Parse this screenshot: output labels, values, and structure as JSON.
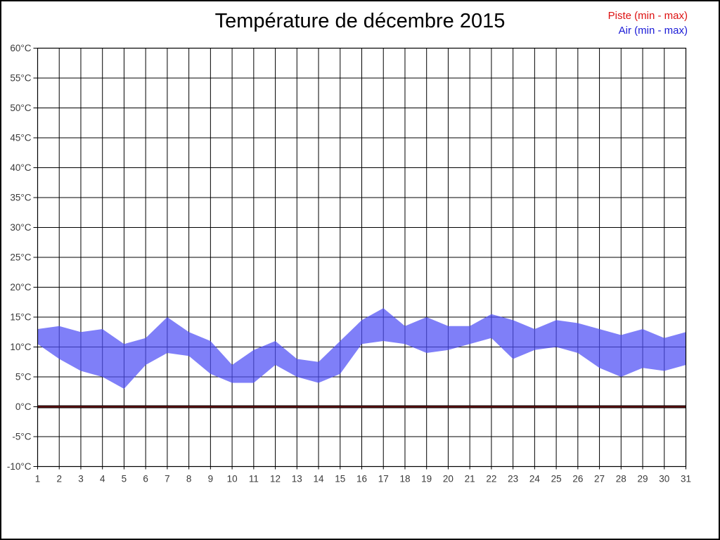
{
  "page": {
    "background": "#ffffff",
    "border_color": "#000000"
  },
  "legend": {
    "items": [
      {
        "id": "piste",
        "label": "Piste (min - max)",
        "color": "#dd1111"
      },
      {
        "id": "air",
        "label": "Air (min - max)",
        "color": "#1a1ad6"
      }
    ],
    "position": "top-right"
  },
  "chart_data": {
    "type": "area",
    "title": "Température de décembre 2015",
    "xlabel": "",
    "ylabel": "",
    "x": [
      1,
      2,
      3,
      4,
      5,
      6,
      7,
      8,
      9,
      10,
      11,
      12,
      13,
      14,
      15,
      16,
      17,
      18,
      19,
      20,
      21,
      22,
      23,
      24,
      25,
      26,
      27,
      28,
      29,
      30,
      31
    ],
    "x_tick_labels": [
      "1",
      "2",
      "3",
      "4",
      "5",
      "6",
      "7",
      "8",
      "9",
      "10",
      "11",
      "12",
      "13",
      "14",
      "15",
      "16",
      "17",
      "18",
      "19",
      "20",
      "21",
      "22",
      "23",
      "24",
      "25",
      "26",
      "27",
      "28",
      "29",
      "30",
      "31"
    ],
    "y_tick_values": [
      60,
      55,
      50,
      45,
      40,
      35,
      30,
      25,
      20,
      15,
      10,
      5,
      0,
      -5,
      -10
    ],
    "y_tick_labels": [
      "60°C",
      "55°C",
      "50°C",
      "45°C",
      "40°C",
      "35°C",
      "30°C",
      "25°C",
      "20°C",
      "15°C",
      "10°C",
      "5°C",
      "0°C",
      "-5°C",
      "-10°C"
    ],
    "xlim": [
      1,
      31
    ],
    "ylim": [
      -10,
      60
    ],
    "grid": true,
    "grid_color": "#000000",
    "text_color": "#3a3a3a",
    "legend_position": "top-right",
    "series": [
      {
        "id": "piste",
        "name": "Piste (min - max)",
        "kind": "min-max-band",
        "color": "#661010",
        "edge_color": "#000000",
        "min": [
          0,
          0,
          0,
          0,
          0,
          0,
          0,
          0,
          0,
          0,
          0,
          0,
          0,
          0,
          0,
          0,
          0,
          0,
          0,
          0,
          0,
          0,
          0,
          0,
          0,
          0,
          0,
          0,
          0,
          0,
          0
        ],
        "max": [
          0,
          0,
          0,
          0,
          0,
          0,
          0,
          0,
          0,
          0,
          0,
          0,
          0,
          0,
          0,
          0,
          0,
          0,
          0,
          0,
          0,
          0,
          0,
          0,
          0,
          0,
          0,
          0,
          0,
          0,
          0
        ]
      },
      {
        "id": "air",
        "name": "Air (min - max)",
        "kind": "min-max-band",
        "color": "rgba(77,77,245,0.72)",
        "min": [
          10.5,
          8,
          6,
          5,
          3,
          7,
          9,
          8.5,
          5.5,
          4,
          4,
          7,
          5,
          4,
          5.5,
          10.5,
          11,
          10.5,
          9,
          9.5,
          10.5,
          11.5,
          8,
          9.5,
          10,
          9,
          6.5,
          5,
          6.5,
          6,
          7
        ],
        "max": [
          13,
          13.5,
          12.5,
          13,
          10.5,
          11.5,
          15,
          12.5,
          11,
          7,
          9.5,
          11,
          8,
          7.5,
          11,
          14.5,
          16.5,
          13.5,
          15,
          13.5,
          13.5,
          15.5,
          14.5,
          13,
          14.5,
          14,
          13,
          12,
          13,
          11.5,
          12.5
        ]
      }
    ]
  }
}
